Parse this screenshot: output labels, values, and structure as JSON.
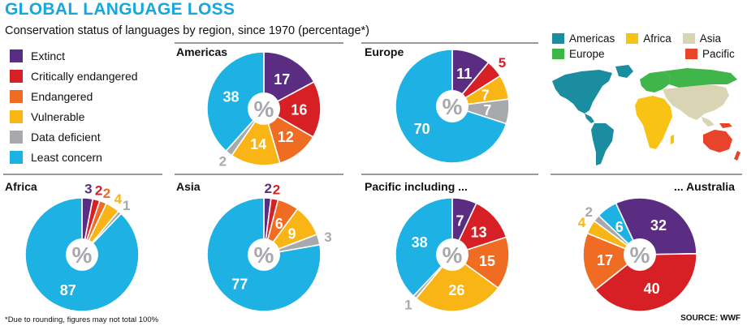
{
  "title": "GLOBAL LANGUAGE LOSS",
  "subtitle": "Conservation status of languages by region, since 1970 (percentage*)",
  "footnote": "*Due to rounding, figures may not total 100%",
  "source": "SOURCE: WWF",
  "center_symbol": "%",
  "colors": {
    "extinct": "#5a2d82",
    "critically_endangered": "#d71f26",
    "endangered": "#ef6c22",
    "vulnerable": "#f9b515",
    "data_deficient": "#a7a9ac",
    "least_concern": "#1eb1e3"
  },
  "legend": {
    "items": [
      {
        "label": "Extinct",
        "key": "extinct"
      },
      {
        "label": "Critically endangered",
        "key": "critically_endangered"
      },
      {
        "label": "Endangered",
        "key": "endangered"
      },
      {
        "label": "Vulnerable",
        "key": "vulnerable"
      },
      {
        "label": "Data deficient",
        "key": "data_deficient"
      },
      {
        "label": "Least concern",
        "key": "least_concern"
      }
    ]
  },
  "map_legend": {
    "items": [
      {
        "label": "Americas",
        "color": "#1a8ea0"
      },
      {
        "label": "Africa",
        "color": "#f9c315"
      },
      {
        "label": "Asia",
        "color": "#d8d4b4"
      },
      {
        "label": "Europe",
        "color": "#3fb54a"
      },
      {
        "label": "Pacific",
        "color": "#e8432b"
      }
    ]
  },
  "chart_data": [
    {
      "type": "pie",
      "title": "Americas",
      "categories": [
        "Extinct",
        "Critically endangered",
        "Endangered",
        "Vulnerable",
        "Data deficient",
        "Least concern"
      ],
      "values": [
        17,
        16,
        12,
        14,
        2,
        38
      ]
    },
    {
      "type": "pie",
      "title": "Europe",
      "categories": [
        "Extinct",
        "Critically endangered",
        "Endangered",
        "Vulnerable",
        "Data deficient",
        "Least concern"
      ],
      "values": [
        11,
        5,
        0,
        7,
        7,
        70
      ]
    },
    {
      "type": "pie",
      "title": "Africa",
      "categories": [
        "Extinct",
        "Critically endangered",
        "Endangered",
        "Vulnerable",
        "Data deficient",
        "Least concern"
      ],
      "values": [
        3,
        2,
        2,
        4,
        1,
        87
      ]
    },
    {
      "type": "pie",
      "title": "Asia",
      "categories": [
        "Extinct",
        "Critically endangered",
        "Endangered",
        "Vulnerable",
        "Data deficient",
        "Least concern"
      ],
      "values": [
        2,
        2,
        6,
        9,
        3,
        77
      ]
    },
    {
      "type": "pie",
      "title": "Pacific including ...",
      "categories": [
        "Extinct",
        "Critically endangered",
        "Endangered",
        "Vulnerable",
        "Data deficient",
        "Least concern"
      ],
      "values": [
        7,
        13,
        15,
        26,
        1,
        38
      ]
    },
    {
      "type": "pie",
      "title": "... Australia",
      "categories": [
        "Extinct",
        "Critically endangered",
        "Endangered",
        "Vulnerable",
        "Data deficient",
        "Least concern"
      ],
      "values": [
        32,
        40,
        17,
        4,
        2,
        6
      ]
    }
  ]
}
